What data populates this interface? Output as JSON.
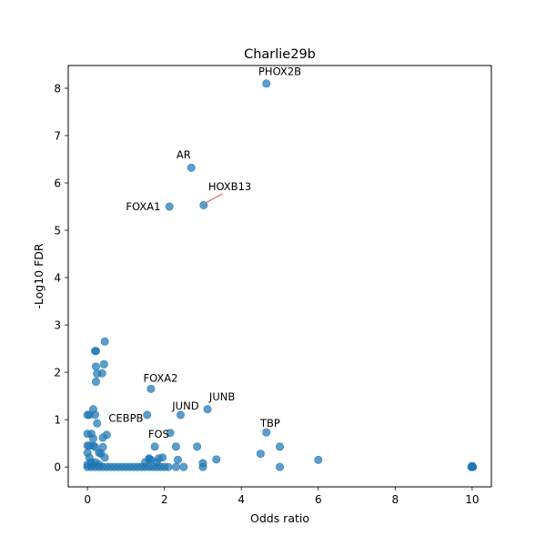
{
  "chart_data": {
    "type": "scatter",
    "title": "Charlie29b",
    "xlabel": "Odds ratio",
    "ylabel": "-Log10 FDR",
    "xlim": [
      -0.5,
      10.5
    ],
    "ylim": [
      -0.42,
      8.48
    ],
    "xticks": [
      0,
      2,
      4,
      6,
      8,
      10
    ],
    "yticks": [
      0,
      1,
      2,
      3,
      4,
      5,
      6,
      7,
      8
    ],
    "grid": false,
    "marker_color": "#1f77b4",
    "points": [
      [
        4.65,
        8.1
      ],
      [
        2.7,
        6.32
      ],
      [
        3.02,
        5.53
      ],
      [
        2.13,
        5.5
      ],
      [
        0.45,
        2.65
      ],
      [
        0.22,
        2.45
      ],
      [
        0.2,
        2.45
      ],
      [
        0.43,
        2.17
      ],
      [
        0.22,
        2.12
      ],
      [
        0.38,
        1.98
      ],
      [
        0.25,
        1.97
      ],
      [
        0.22,
        1.8
      ],
      [
        1.65,
        1.65
      ],
      [
        0.15,
        1.22
      ],
      [
        3.12,
        1.22
      ],
      [
        0.0,
        1.1
      ],
      [
        0.05,
        1.1
      ],
      [
        0.2,
        1.1
      ],
      [
        1.55,
        1.1
      ],
      [
        2.42,
        1.1
      ],
      [
        0.25,
        0.92
      ],
      [
        2.15,
        0.72
      ],
      [
        4.65,
        0.73
      ],
      [
        0.0,
        0.7
      ],
      [
        0.1,
        0.7
      ],
      [
        0.5,
        0.68
      ],
      [
        0.4,
        0.62
      ],
      [
        0.15,
        0.6
      ],
      [
        0.0,
        0.45
      ],
      [
        0.05,
        0.45
      ],
      [
        0.15,
        0.45
      ],
      [
        0.2,
        0.42
      ],
      [
        0.4,
        0.42
      ],
      [
        1.75,
        0.43
      ],
      [
        2.3,
        0.43
      ],
      [
        2.85,
        0.43
      ],
      [
        5.0,
        0.43
      ],
      [
        0.0,
        0.3
      ],
      [
        0.3,
        0.3
      ],
      [
        0.35,
        0.28
      ],
      [
        4.5,
        0.28
      ],
      [
        0.05,
        0.2
      ],
      [
        0.45,
        0.2
      ],
      [
        1.95,
        0.2
      ],
      [
        1.6,
        0.18
      ],
      [
        1.85,
        0.18
      ],
      [
        1.6,
        0.16
      ],
      [
        1.65,
        0.15
      ],
      [
        2.35,
        0.15
      ],
      [
        3.35,
        0.16
      ],
      [
        6.0,
        0.15
      ],
      [
        1.5,
        0.1
      ],
      [
        1.8,
        0.1
      ],
      [
        0.1,
        0.1
      ],
      [
        0.2,
        0.1
      ],
      [
        3.0,
        0.08
      ],
      [
        0.0,
        0.05
      ],
      [
        0.1,
        0.05
      ],
      [
        0.3,
        0.05
      ],
      [
        0.0,
        0.0
      ],
      [
        0.1,
        0.0
      ],
      [
        0.2,
        0.0
      ],
      [
        0.3,
        0.0
      ],
      [
        0.4,
        0.0
      ],
      [
        0.5,
        0.0
      ],
      [
        0.6,
        0.0
      ],
      [
        0.7,
        0.0
      ],
      [
        0.8,
        0.0
      ],
      [
        0.9,
        0.0
      ],
      [
        1.0,
        0.0
      ],
      [
        1.1,
        0.0
      ],
      [
        1.2,
        0.0
      ],
      [
        1.3,
        0.0
      ],
      [
        1.4,
        0.0
      ],
      [
        1.5,
        0.0
      ],
      [
        1.6,
        0.0
      ],
      [
        1.7,
        0.0
      ],
      [
        1.8,
        0.0
      ],
      [
        1.9,
        0.0
      ],
      [
        2.0,
        0.0
      ],
      [
        2.1,
        0.0
      ],
      [
        2.3,
        0.0
      ],
      [
        2.5,
        0.0
      ],
      [
        3.0,
        0.0
      ],
      [
        5.0,
        0.0
      ],
      [
        10.0,
        0.0
      ],
      [
        10.0,
        0.02
      ],
      [
        9.98,
        0.0
      ],
      [
        10.02,
        0.0
      ]
    ],
    "annotations": [
      {
        "text": "PHOX2B",
        "x": 4.65,
        "y": 8.1,
        "tx": 5.0,
        "ty": 8.28,
        "anchor": "middle",
        "leader": false
      },
      {
        "text": "AR",
        "x": 2.7,
        "y": 6.32,
        "tx": 2.5,
        "ty": 6.52,
        "anchor": "middle",
        "leader": false
      },
      {
        "text": "HOXB13",
        "x": 3.02,
        "y": 5.53,
        "tx": 3.7,
        "ty": 5.85,
        "anchor": "middle",
        "leader": true
      },
      {
        "text": "FOXA1",
        "x": 2.13,
        "y": 5.5,
        "tx": 1.45,
        "ty": 5.42,
        "anchor": "middle",
        "leader": false
      },
      {
        "text": "FOXA2",
        "x": 1.65,
        "y": 1.65,
        "tx": 1.9,
        "ty": 1.8,
        "anchor": "middle",
        "leader": false
      },
      {
        "text": "JUNB",
        "x": 3.12,
        "y": 1.22,
        "tx": 3.5,
        "ty": 1.41,
        "anchor": "middle",
        "leader": false
      },
      {
        "text": "JUND",
        "x": 2.42,
        "y": 1.1,
        "tx": 2.55,
        "ty": 1.21,
        "anchor": "middle",
        "leader": false
      },
      {
        "text": "CEBPB",
        "x": 0.5,
        "y": 0.68,
        "tx": 1.0,
        "ty": 0.95,
        "anchor": "middle",
        "leader": false
      },
      {
        "text": "TBP",
        "x": 4.65,
        "y": 0.73,
        "tx": 4.75,
        "ty": 0.85,
        "anchor": "middle",
        "leader": false
      },
      {
        "text": "FOS",
        "x": 1.85,
        "y": 0.18,
        "tx": 1.85,
        "ty": 0.62,
        "anchor": "middle",
        "leader": false
      }
    ]
  }
}
